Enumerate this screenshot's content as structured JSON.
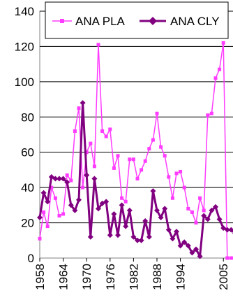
{
  "chart_data": {
    "type": "line",
    "x": [
      1958,
      1959,
      1960,
      1961,
      1962,
      1963,
      1964,
      1965,
      1966,
      1967,
      1968,
      1969,
      1970,
      1971,
      1972,
      1973,
      1974,
      1975,
      1976,
      1977,
      1978,
      1979,
      1980,
      1981,
      1982,
      1983,
      1984,
      1985,
      1986,
      1987,
      1988,
      1989,
      1990,
      1991,
      1992,
      1993,
      1994,
      1995,
      1996,
      1997,
      1998,
      1999,
      2000,
      2001,
      2002,
      2003,
      2004,
      2005,
      2006,
      2007,
      2008
    ],
    "series": [
      {
        "name": "ANA PLA",
        "color": "#ff3cff",
        "marker": "square",
        "values": [
          11,
          26,
          18,
          40,
          34,
          24,
          25,
          47,
          44,
          72,
          85,
          40,
          60,
          65,
          52,
          121,
          72,
          69,
          73,
          51,
          58,
          34,
          32,
          56,
          56,
          45,
          50,
          55,
          62,
          67,
          82,
          63,
          58,
          46,
          34,
          48,
          49,
          40,
          28,
          26,
          20,
          34,
          27,
          81,
          82,
          102,
          107,
          122,
          0,
          0,
          0
        ]
      },
      {
        "name": "ANA CLY",
        "color": "#800080",
        "marker": "diamond",
        "values": [
          23,
          37,
          32,
          46,
          45,
          45,
          45,
          43,
          30,
          27,
          33,
          88,
          47,
          12,
          45,
          28,
          31,
          32,
          13,
          25,
          13,
          30,
          18,
          27,
          12,
          10,
          10,
          21,
          12,
          38,
          27,
          23,
          28,
          16,
          11,
          15,
          7,
          9,
          7,
          3,
          5,
          1,
          24,
          22,
          27,
          29,
          22,
          17,
          16,
          16,
          14
        ]
      }
    ],
    "x_ticks": [
      "1958",
      "1964",
      "1970",
      "1976",
      "1982",
      "1988",
      "1994",
      "2005"
    ],
    "y_ticks": [
      "0",
      "20",
      "40",
      "60",
      "80",
      "100",
      "120",
      "140"
    ],
    "ylim": [
      0,
      140
    ],
    "legend_position": "top",
    "grid": "horizontal"
  }
}
